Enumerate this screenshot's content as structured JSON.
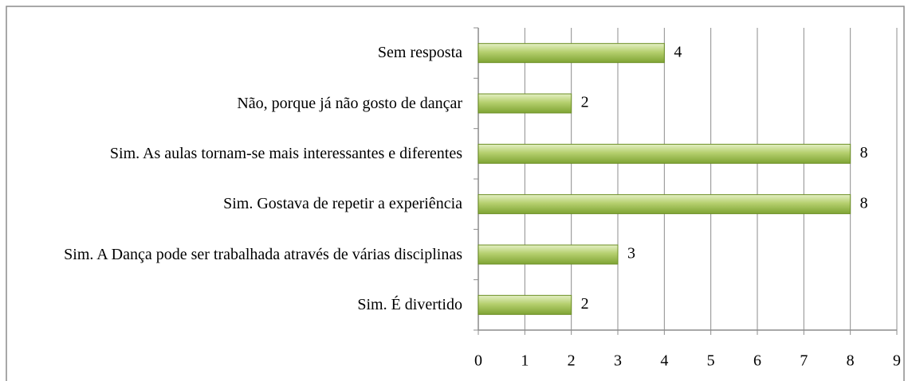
{
  "chart_data": {
    "type": "bar",
    "orientation": "horizontal",
    "categories": [
      "Sem resposta",
      "Não, porque já não gosto de dançar",
      "Sim. As aulas tornam-se mais interessantes e diferentes",
      "Sim. Gostava de repetir a experiência",
      "Sim. A Dança pode ser trabalhada através de várias disciplinas",
      "Sim. É divertido"
    ],
    "values": [
      4,
      2,
      8,
      8,
      3,
      2
    ],
    "color": "#9bbb59",
    "xlim": [
      0,
      9
    ],
    "xticks": [
      0,
      1,
      2,
      3,
      4,
      5,
      6,
      7,
      8,
      9
    ],
    "grid": true
  }
}
